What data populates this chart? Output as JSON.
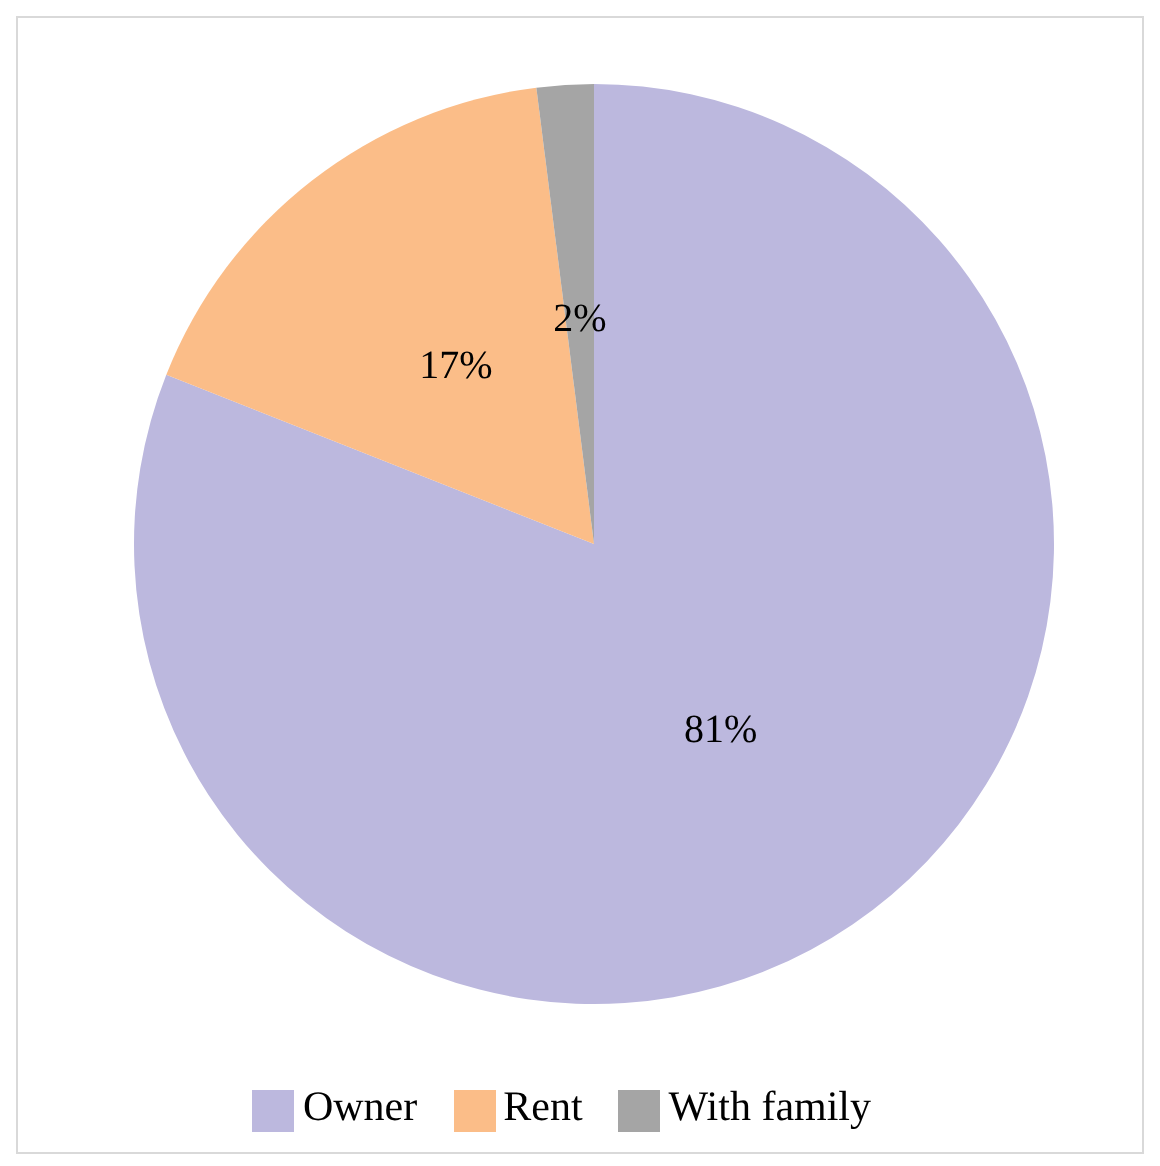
{
  "chart_data": {
    "type": "pie",
    "categories": [
      "Owner",
      "Rent",
      "With family"
    ],
    "values": [
      81,
      17,
      2
    ],
    "colors": [
      "#bcb8de",
      "#fbbd88",
      "#a5a5a5"
    ],
    "value_labels": [
      "81%",
      "17%",
      "2%"
    ],
    "legend": "bottom"
  }
}
